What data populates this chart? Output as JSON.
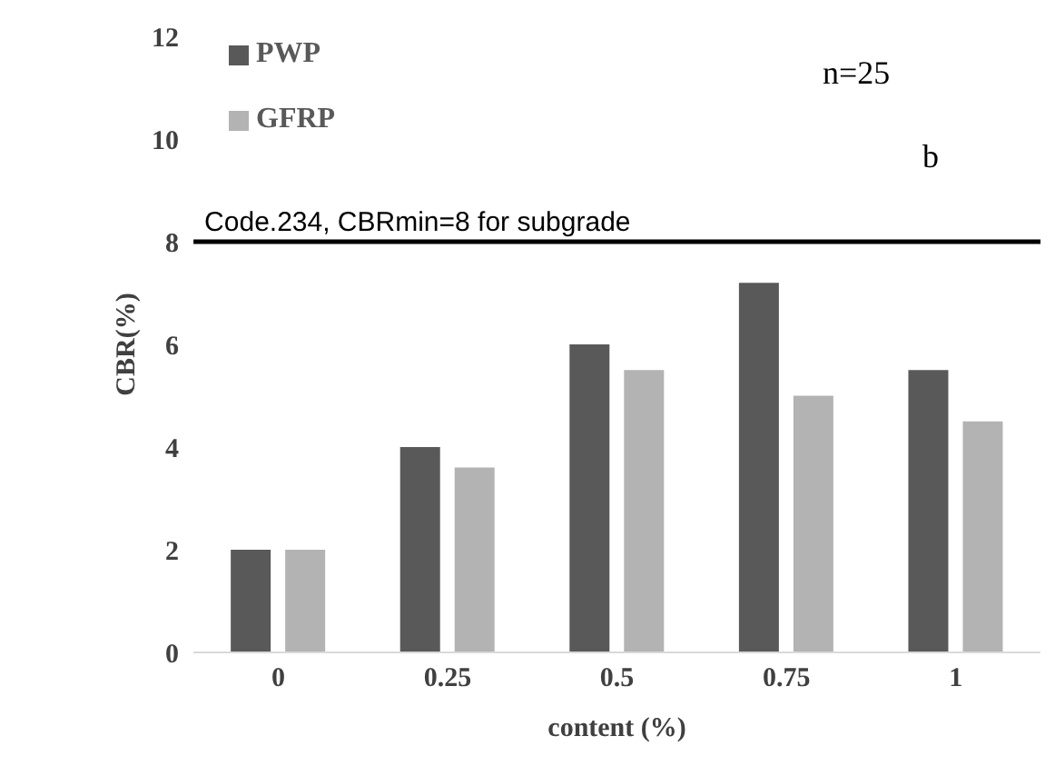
{
  "chart_data": {
    "type": "bar",
    "xlabel": "content (%)",
    "ylabel": "CBR(%)",
    "categories": [
      "0",
      "0.25",
      "0.5",
      "0.75",
      "1"
    ],
    "series": [
      {
        "name": "PWP",
        "color": "#595959",
        "values": [
          2,
          4,
          6,
          7.2,
          5.5
        ]
      },
      {
        "name": "GFRP",
        "color": "#b3b3b3",
        "values": [
          2,
          3.6,
          5.5,
          5,
          4.5
        ]
      }
    ],
    "ylim": [
      0,
      12
    ],
    "yticks": [
      0,
      2,
      4,
      6,
      8,
      10,
      12
    ],
    "grid": false,
    "legend": "top left",
    "ref_lines": [
      {
        "axis": "y",
        "value": 8,
        "label": "Code.234, CBRmin=8 for subgrade",
        "color": "#000000"
      }
    ],
    "annotations": [
      "n=25",
      "b"
    ]
  }
}
